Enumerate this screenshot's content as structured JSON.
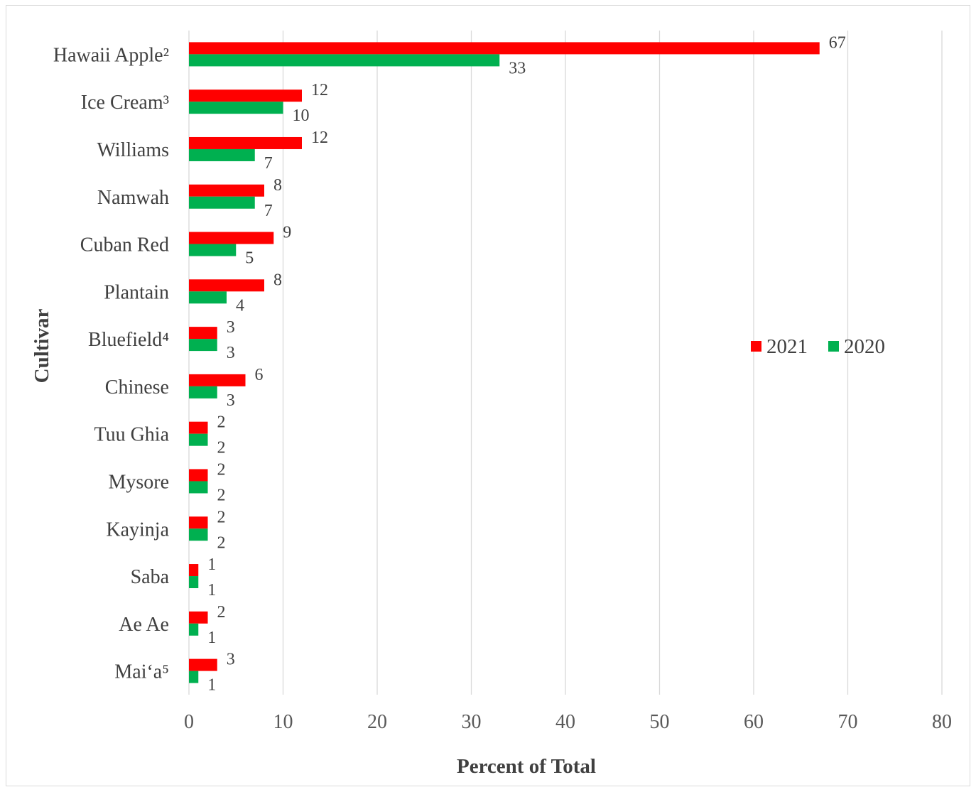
{
  "chart_data": {
    "type": "bar",
    "orientation": "horizontal",
    "title": "",
    "xlabel": "Percent of Total",
    "ylabel": "Cultivar",
    "xlim": [
      0,
      80
    ],
    "xticks": [
      "0",
      "10",
      "20",
      "30",
      "40",
      "50",
      "60",
      "70",
      "80"
    ],
    "grid": "vertical",
    "legend_position": "right",
    "categories": [
      "Hawaii Apple²",
      "Ice Cream³",
      "Williams",
      "Namwah",
      "Cuban Red",
      "Plantain",
      "Bluefield⁴",
      "Chinese",
      "Tuu Ghia",
      "Mysore",
      "Kayinja",
      "Saba",
      "Ae Ae",
      "Mai‘a⁵"
    ],
    "series": [
      {
        "name": "2021",
        "color": "#ff0000",
        "values": [
          67,
          12,
          12,
          8,
          9,
          8,
          3,
          6,
          2,
          2,
          2,
          1,
          2,
          3
        ]
      },
      {
        "name": "2020",
        "color": "#00b050",
        "values": [
          33,
          10,
          7,
          7,
          5,
          4,
          3,
          3,
          2,
          2,
          2,
          1,
          1,
          1
        ]
      }
    ]
  }
}
